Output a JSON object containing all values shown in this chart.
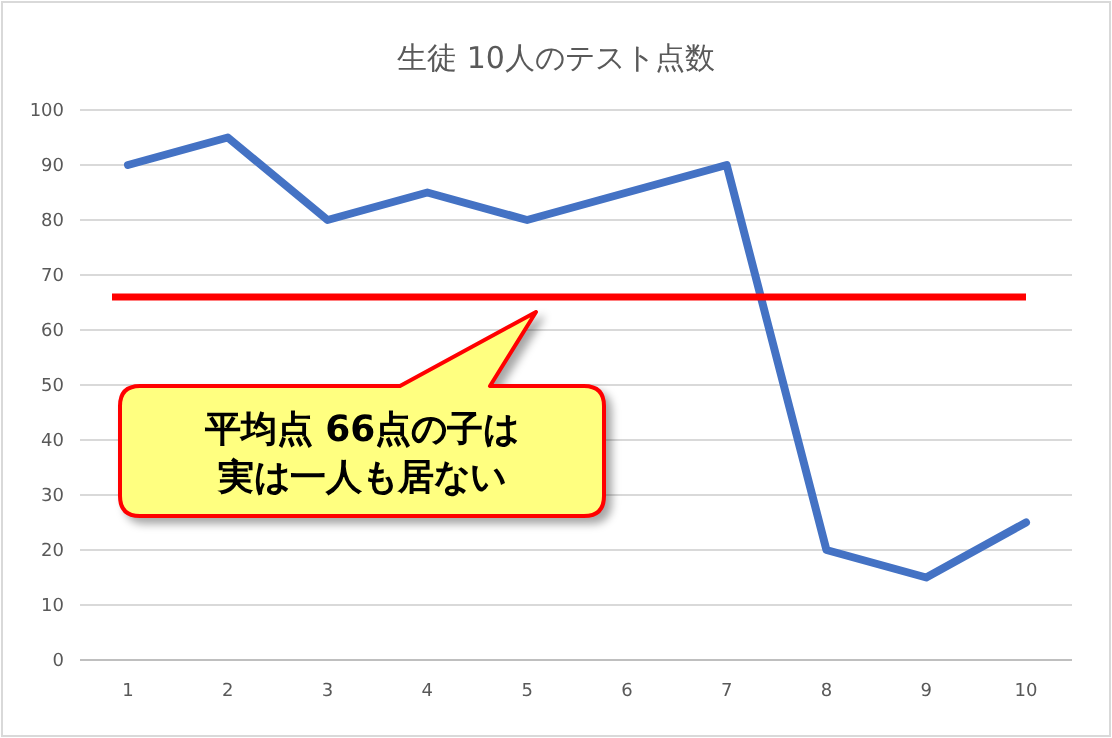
{
  "chart_data": {
    "type": "line",
    "title": "生徒 10人のテスト点数",
    "categories": [
      "1",
      "2",
      "3",
      "4",
      "5",
      "6",
      "7",
      "8",
      "9",
      "10"
    ],
    "series": [
      {
        "color": "#4472c4",
        "values": [
          90,
          95,
          80,
          85,
          80,
          85,
          90,
          20,
          15,
          25
        ]
      }
    ],
    "ylim": [
      0,
      100
    ],
    "yticks": [
      0,
      10,
      20,
      30,
      40,
      50,
      60,
      70,
      80,
      90,
      100
    ],
    "grid": "y",
    "marker": "none",
    "line_style": "solid",
    "ref_lines": [
      {
        "axis": "y",
        "value": 66,
        "color": "#ff0000",
        "line_style": "solid"
      }
    ],
    "annotations": [
      "平均点 66点の子は",
      "実は一人も居ない"
    ]
  }
}
